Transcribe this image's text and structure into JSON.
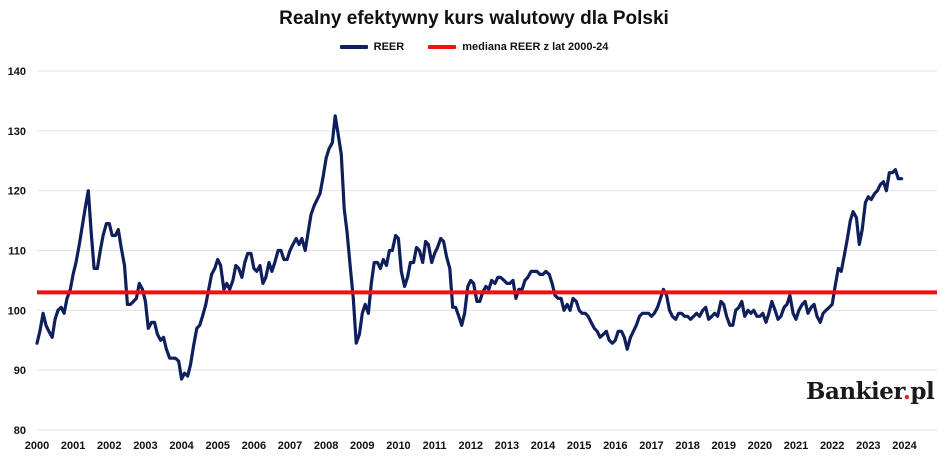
{
  "chart_data": {
    "type": "line",
    "title": "Realny efektywny kurs walutowy dla Polski",
    "xlabel": "",
    "ylabel": "",
    "ylim": [
      80,
      140
    ],
    "xlim": [
      2000,
      2024.9
    ],
    "yticks": [
      80,
      90,
      100,
      110,
      120,
      130,
      140
    ],
    "xticks": [
      2000,
      2001,
      2002,
      2003,
      2004,
      2005,
      2006,
      2007,
      2008,
      2009,
      2010,
      2011,
      2012,
      2013,
      2014,
      2015,
      2016,
      2017,
      2018,
      2019,
      2020,
      2021,
      2022,
      2023,
      2024
    ],
    "grid": true,
    "legend": "top-center",
    "series": [
      {
        "name": "REER",
        "color": "#0f1f5c",
        "points": [
          [
            2000.0,
            94.5
          ],
          [
            2000.08,
            96.5
          ],
          [
            2000.17,
            99.5
          ],
          [
            2000.25,
            97.5
          ],
          [
            2000.33,
            96.5
          ],
          [
            2000.42,
            95.5
          ],
          [
            2000.5,
            98.5
          ],
          [
            2000.58,
            100.0
          ],
          [
            2000.67,
            100.5
          ],
          [
            2000.75,
            99.5
          ],
          [
            2000.83,
            102.0
          ],
          [
            2000.92,
            103.5
          ],
          [
            2001.0,
            106.0
          ],
          [
            2001.08,
            108.0
          ],
          [
            2001.17,
            111.0
          ],
          [
            2001.25,
            114.0
          ],
          [
            2001.33,
            117.0
          ],
          [
            2001.42,
            120.0
          ],
          [
            2001.5,
            113.0
          ],
          [
            2001.58,
            107.0
          ],
          [
            2001.67,
            107.0
          ],
          [
            2001.75,
            110.0
          ],
          [
            2001.83,
            112.5
          ],
          [
            2001.92,
            114.5
          ],
          [
            2002.0,
            114.5
          ],
          [
            2002.08,
            112.5
          ],
          [
            2002.17,
            112.5
          ],
          [
            2002.25,
            113.5
          ],
          [
            2002.33,
            110.5
          ],
          [
            2002.42,
            107.5
          ],
          [
            2002.5,
            101.0
          ],
          [
            2002.58,
            101.0
          ],
          [
            2002.67,
            101.5
          ],
          [
            2002.75,
            102.0
          ],
          [
            2002.83,
            104.5
          ],
          [
            2002.92,
            103.5
          ],
          [
            2003.0,
            101.5
          ],
          [
            2003.08,
            97.0
          ],
          [
            2003.17,
            98.0
          ],
          [
            2003.25,
            98.0
          ],
          [
            2003.33,
            96.0
          ],
          [
            2003.42,
            95.0
          ],
          [
            2003.5,
            95.5
          ],
          [
            2003.58,
            93.5
          ],
          [
            2003.67,
            92.0
          ],
          [
            2003.75,
            92.0
          ],
          [
            2003.83,
            92.0
          ],
          [
            2003.92,
            91.5
          ],
          [
            2004.0,
            88.5
          ],
          [
            2004.08,
            89.5
          ],
          [
            2004.17,
            89.0
          ],
          [
            2004.25,
            91.0
          ],
          [
            2004.33,
            94.0
          ],
          [
            2004.42,
            97.0
          ],
          [
            2004.5,
            97.5
          ],
          [
            2004.58,
            99.0
          ],
          [
            2004.67,
            101.0
          ],
          [
            2004.75,
            103.5
          ],
          [
            2004.83,
            106.0
          ],
          [
            2004.92,
            107.0
          ],
          [
            2005.0,
            108.5
          ],
          [
            2005.08,
            107.5
          ],
          [
            2005.17,
            103.5
          ],
          [
            2005.25,
            104.5
          ],
          [
            2005.33,
            103.5
          ],
          [
            2005.42,
            105.0
          ],
          [
            2005.5,
            107.5
          ],
          [
            2005.58,
            107.0
          ],
          [
            2005.67,
            105.5
          ],
          [
            2005.75,
            108.0
          ],
          [
            2005.83,
            109.5
          ],
          [
            2005.92,
            109.5
          ],
          [
            2006.0,
            107.0
          ],
          [
            2006.08,
            106.5
          ],
          [
            2006.17,
            107.5
          ],
          [
            2006.25,
            104.5
          ],
          [
            2006.33,
            105.5
          ],
          [
            2006.42,
            108.0
          ],
          [
            2006.5,
            106.5
          ],
          [
            2006.58,
            108.0
          ],
          [
            2006.67,
            110.0
          ],
          [
            2006.75,
            110.0
          ],
          [
            2006.83,
            108.5
          ],
          [
            2006.92,
            108.5
          ],
          [
            2007.0,
            110.0
          ],
          [
            2007.08,
            111.0
          ],
          [
            2007.17,
            112.0
          ],
          [
            2007.25,
            111.0
          ],
          [
            2007.33,
            112.0
          ],
          [
            2007.42,
            110.0
          ],
          [
            2007.5,
            113.0
          ],
          [
            2007.58,
            116.0
          ],
          [
            2007.67,
            117.5
          ],
          [
            2007.75,
            118.5
          ],
          [
            2007.83,
            119.5
          ],
          [
            2007.92,
            122.5
          ],
          [
            2008.0,
            125.5
          ],
          [
            2008.08,
            127.0
          ],
          [
            2008.17,
            128.0
          ],
          [
            2008.25,
            132.5
          ],
          [
            2008.33,
            129.5
          ],
          [
            2008.42,
            126.0
          ],
          [
            2008.5,
            117.0
          ],
          [
            2008.58,
            113.0
          ],
          [
            2008.67,
            107.0
          ],
          [
            2008.75,
            102.0
          ],
          [
            2008.83,
            94.5
          ],
          [
            2008.92,
            96.0
          ],
          [
            2009.0,
            99.5
          ],
          [
            2009.08,
            101.0
          ],
          [
            2009.17,
            99.5
          ],
          [
            2009.25,
            104.5
          ],
          [
            2009.33,
            108.0
          ],
          [
            2009.42,
            108.0
          ],
          [
            2009.5,
            107.0
          ],
          [
            2009.58,
            108.5
          ],
          [
            2009.67,
            107.5
          ],
          [
            2009.75,
            110.0
          ],
          [
            2009.83,
            110.0
          ],
          [
            2009.92,
            112.5
          ],
          [
            2010.0,
            112.0
          ],
          [
            2010.08,
            106.5
          ],
          [
            2010.17,
            104.0
          ],
          [
            2010.25,
            105.5
          ],
          [
            2010.33,
            108.0
          ],
          [
            2010.42,
            108.0
          ],
          [
            2010.5,
            110.5
          ],
          [
            2010.58,
            110.0
          ],
          [
            2010.67,
            108.0
          ],
          [
            2010.75,
            111.5
          ],
          [
            2010.83,
            111.0
          ],
          [
            2010.92,
            108.0
          ],
          [
            2011.0,
            109.5
          ],
          [
            2011.08,
            110.5
          ],
          [
            2011.17,
            112.0
          ],
          [
            2011.25,
            111.5
          ],
          [
            2011.33,
            109.0
          ],
          [
            2011.42,
            107.0
          ],
          [
            2011.5,
            100.5
          ],
          [
            2011.58,
            100.5
          ],
          [
            2011.67,
            99.0
          ],
          [
            2011.75,
            97.5
          ],
          [
            2011.83,
            99.5
          ],
          [
            2011.92,
            104.0
          ],
          [
            2012.0,
            105.0
          ],
          [
            2012.08,
            104.5
          ],
          [
            2012.17,
            101.5
          ],
          [
            2012.25,
            101.5
          ],
          [
            2012.33,
            103.0
          ],
          [
            2012.42,
            104.0
          ],
          [
            2012.5,
            103.5
          ],
          [
            2012.58,
            105.0
          ],
          [
            2012.67,
            104.5
          ],
          [
            2012.75,
            105.5
          ],
          [
            2012.83,
            105.5
          ],
          [
            2012.92,
            105.0
          ],
          [
            2013.0,
            104.5
          ],
          [
            2013.08,
            104.5
          ],
          [
            2013.17,
            105.0
          ],
          [
            2013.25,
            102.0
          ],
          [
            2013.33,
            103.5
          ],
          [
            2013.42,
            103.5
          ],
          [
            2013.5,
            105.0
          ],
          [
            2013.58,
            105.5
          ],
          [
            2013.67,
            106.5
          ],
          [
            2013.75,
            106.5
          ],
          [
            2013.83,
            106.5
          ],
          [
            2013.92,
            106.0
          ],
          [
            2014.0,
            106.0
          ],
          [
            2014.08,
            106.5
          ],
          [
            2014.17,
            106.0
          ],
          [
            2014.25,
            104.5
          ],
          [
            2014.33,
            102.5
          ],
          [
            2014.42,
            102.0
          ],
          [
            2014.5,
            102.0
          ],
          [
            2014.58,
            100.0
          ],
          [
            2014.67,
            101.0
          ],
          [
            2014.75,
            100.0
          ],
          [
            2014.83,
            102.0
          ],
          [
            2014.92,
            101.5
          ],
          [
            2015.0,
            100.0
          ],
          [
            2015.08,
            99.5
          ],
          [
            2015.17,
            99.5
          ],
          [
            2015.25,
            99.0
          ],
          [
            2015.33,
            98.0
          ],
          [
            2015.42,
            97.0
          ],
          [
            2015.5,
            96.5
          ],
          [
            2015.58,
            95.5
          ],
          [
            2015.67,
            96.0
          ],
          [
            2015.75,
            96.5
          ],
          [
            2015.83,
            95.0
          ],
          [
            2015.92,
            94.5
          ],
          [
            2016.0,
            95.0
          ],
          [
            2016.08,
            96.5
          ],
          [
            2016.17,
            96.5
          ],
          [
            2016.25,
            95.5
          ],
          [
            2016.33,
            93.5
          ],
          [
            2016.42,
            95.5
          ],
          [
            2016.5,
            96.5
          ],
          [
            2016.58,
            97.5
          ],
          [
            2016.67,
            99.0
          ],
          [
            2016.75,
            99.5
          ],
          [
            2016.83,
            99.5
          ],
          [
            2016.92,
            99.5
          ],
          [
            2017.0,
            99.0
          ],
          [
            2017.08,
            99.5
          ],
          [
            2017.17,
            100.5
          ],
          [
            2017.25,
            102.0
          ],
          [
            2017.33,
            103.5
          ],
          [
            2017.42,
            102.5
          ],
          [
            2017.5,
            100.0
          ],
          [
            2017.58,
            99.0
          ],
          [
            2017.67,
            98.5
          ],
          [
            2017.75,
            99.5
          ],
          [
            2017.83,
            99.5
          ],
          [
            2017.92,
            99.0
          ],
          [
            2018.0,
            99.0
          ],
          [
            2018.08,
            98.5
          ],
          [
            2018.17,
            99.0
          ],
          [
            2018.25,
            99.5
          ],
          [
            2018.33,
            99.0
          ],
          [
            2018.42,
            100.0
          ],
          [
            2018.5,
            100.5
          ],
          [
            2018.58,
            98.5
          ],
          [
            2018.67,
            99.0
          ],
          [
            2018.75,
            99.5
          ],
          [
            2018.83,
            99.0
          ],
          [
            2018.92,
            101.5
          ],
          [
            2019.0,
            101.0
          ],
          [
            2019.08,
            99.0
          ],
          [
            2019.17,
            97.5
          ],
          [
            2019.25,
            97.5
          ],
          [
            2019.33,
            100.0
          ],
          [
            2019.42,
            100.5
          ],
          [
            2019.5,
            101.5
          ],
          [
            2019.58,
            99.0
          ],
          [
            2019.67,
            100.0
          ],
          [
            2019.75,
            99.5
          ],
          [
            2019.83,
            100.0
          ],
          [
            2019.92,
            99.0
          ],
          [
            2020.0,
            99.0
          ],
          [
            2020.08,
            99.5
          ],
          [
            2020.17,
            98.0
          ],
          [
            2020.25,
            99.5
          ],
          [
            2020.33,
            101.5
          ],
          [
            2020.42,
            100.0
          ],
          [
            2020.5,
            98.5
          ],
          [
            2020.58,
            99.0
          ],
          [
            2020.67,
            100.5
          ],
          [
            2020.75,
            101.0
          ],
          [
            2020.83,
            102.5
          ],
          [
            2020.92,
            99.5
          ],
          [
            2021.0,
            98.5
          ],
          [
            2021.08,
            100.0
          ],
          [
            2021.17,
            101.0
          ],
          [
            2021.25,
            101.5
          ],
          [
            2021.33,
            99.5
          ],
          [
            2021.42,
            100.5
          ],
          [
            2021.5,
            101.0
          ],
          [
            2021.58,
            99.0
          ],
          [
            2021.67,
            98.0
          ],
          [
            2021.75,
            99.5
          ],
          [
            2021.83,
            100.0
          ],
          [
            2021.92,
            100.5
          ],
          [
            2022.0,
            101.0
          ],
          [
            2022.08,
            104.0
          ],
          [
            2022.17,
            107.0
          ],
          [
            2022.25,
            106.5
          ],
          [
            2022.33,
            109.0
          ],
          [
            2022.42,
            112.0
          ],
          [
            2022.5,
            115.0
          ],
          [
            2022.58,
            116.5
          ],
          [
            2022.67,
            115.5
          ],
          [
            2022.75,
            111.0
          ],
          [
            2022.83,
            113.5
          ],
          [
            2022.92,
            118.0
          ],
          [
            2023.0,
            119.0
          ],
          [
            2023.08,
            118.5
          ],
          [
            2023.17,
            119.5
          ],
          [
            2023.25,
            120.0
          ],
          [
            2023.33,
            121.0
          ],
          [
            2023.42,
            121.5
          ],
          [
            2023.5,
            120.0
          ],
          [
            2023.58,
            123.0
          ],
          [
            2023.67,
            123.0
          ],
          [
            2023.75,
            123.5
          ],
          [
            2023.83,
            122.0
          ],
          [
            2023.92,
            122.0
          ]
        ]
      },
      {
        "name": "mediana REER z lat 2000-24",
        "color": "#ee1111",
        "value": 103.0
      }
    ]
  },
  "logo": {
    "text": "Bankier",
    "dot": ".",
    "suffix": "pl"
  }
}
